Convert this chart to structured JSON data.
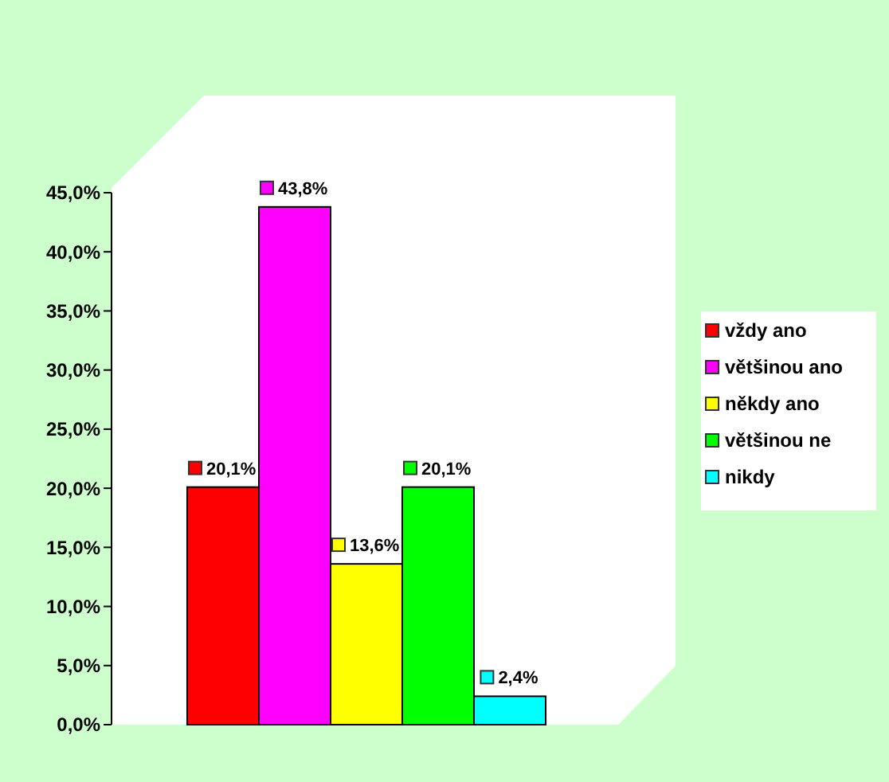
{
  "chart_data": {
    "type": "bar",
    "categories": [
      null
    ],
    "series": [
      {
        "name": "vždy ano",
        "color": "#ff0000",
        "values": [
          20.1
        ],
        "value_labels": [
          "20,1%"
        ]
      },
      {
        "name": "většinou ano",
        "color": "#ff00ff",
        "values": [
          43.8
        ],
        "value_labels": [
          "43,8%"
        ]
      },
      {
        "name": "někdy ano",
        "color": "#ffff00",
        "values": [
          13.6
        ],
        "value_labels": [
          "13,6%"
        ]
      },
      {
        "name": "většinou ne",
        "color": "#00ff00",
        "values": [
          20.1
        ],
        "value_labels": [
          "20,1%"
        ]
      },
      {
        "name": "nikdy",
        "color": "#00ffff",
        "values": [
          2.4
        ],
        "value_labels": [
          "2,4%"
        ]
      }
    ],
    "ylim": [
      0,
      45
    ],
    "yticks": [
      {
        "value": 0,
        "label": "0,0%"
      },
      {
        "value": 5,
        "label": "5,0%"
      },
      {
        "value": 10,
        "label": "10,0%"
      },
      {
        "value": 15,
        "label": "15,0%"
      },
      {
        "value": 20,
        "label": "20,0%"
      },
      {
        "value": 25,
        "label": "25,0%"
      },
      {
        "value": 30,
        "label": "30,0%"
      },
      {
        "value": 35,
        "label": "35,0%"
      },
      {
        "value": 40,
        "label": "40,0%"
      },
      {
        "value": 45,
        "label": "45,0%"
      }
    ],
    "legend": "right"
  }
}
